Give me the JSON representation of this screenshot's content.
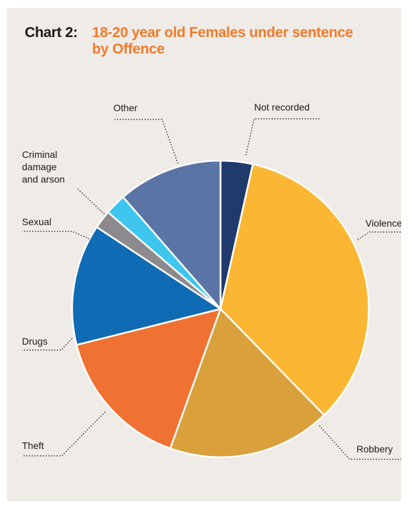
{
  "title_prefix": "Chart 2:",
  "title": "18-20 year old Females under sentence\nby Offence",
  "chart_data": {
    "type": "pie",
    "title": "18-20 year old Females under sentence by Offence",
    "start_angle_deg": 0,
    "direction": "clockwise",
    "slices": [
      {
        "label": "Not recorded",
        "value": 3.5,
        "color": "#1f3a6b"
      },
      {
        "label": "Violence",
        "value": 34.2,
        "color": "#fbb733"
      },
      {
        "label": "Robbery",
        "value": 17.8,
        "color": "#d9a03b"
      },
      {
        "label": "Theft",
        "value": 15.6,
        "color": "#f07232"
      },
      {
        "label": "Drugs",
        "value": 13.2,
        "color": "#0f6bb4"
      },
      {
        "label": "Sexual",
        "value": 2.0,
        "color": "#8c8a8c"
      },
      {
        "label": "Criminal damage and arson",
        "value": 2.3,
        "color": "#3ec6ef"
      },
      {
        "label": "Other",
        "value": 11.4,
        "color": "#5a74a5"
      }
    ]
  },
  "labels": {
    "not_recorded": "Not recorded",
    "violence": "Violence",
    "robbery": "Robbery",
    "theft": "Theft",
    "drugs": "Drugs",
    "sexual": "Sexual",
    "criminal_1": "Criminal",
    "criminal_2": "damage",
    "criminal_3": "and arson",
    "other": "Other"
  }
}
